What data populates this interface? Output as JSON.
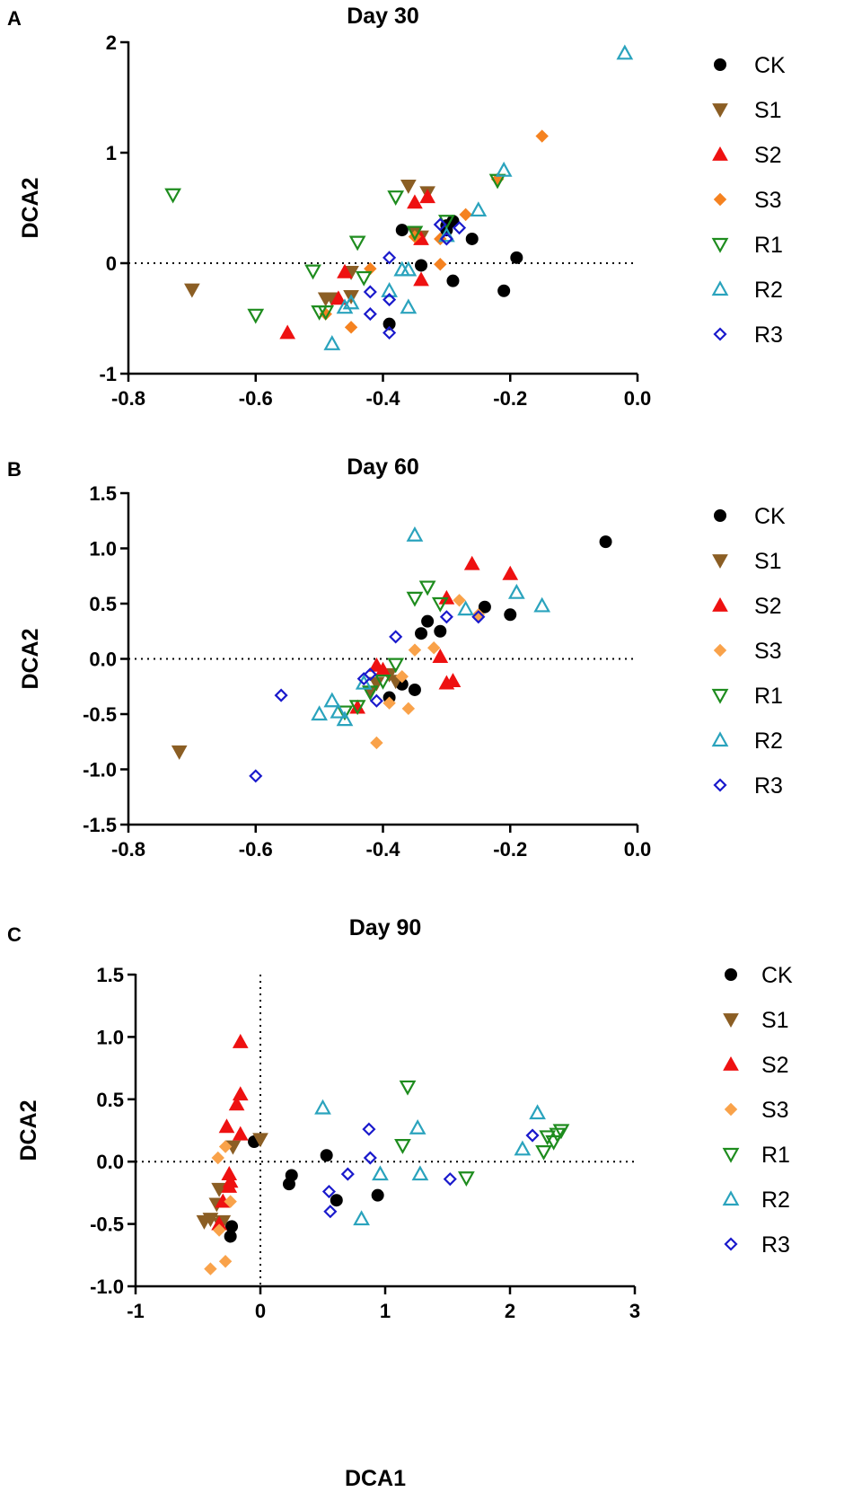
{
  "figure": {
    "x_axis_shared_label": "DCA1"
  },
  "legend_styles": {
    "CK": {
      "shape": "circle",
      "color": "#000000",
      "fill": true
    },
    "S1": {
      "shape": "tri-down",
      "color": "#8B5E24",
      "fill": true
    },
    "S2": {
      "shape": "tri-up",
      "color": "#EE1111",
      "fill": true
    },
    "S3": {
      "shape": "diamond",
      "color": "#F58220",
      "fill": true
    },
    "R1": {
      "shape": "tri-down",
      "color": "#1E8C1E",
      "fill": false
    },
    "R2": {
      "shape": "tri-up",
      "color": "#2AA3BD",
      "fill": false
    },
    "R3": {
      "shape": "diamond",
      "color": "#1A1ACC",
      "fill": false
    }
  },
  "chart_data": [
    {
      "panel": "A",
      "type": "scatter",
      "title": "Day 30",
      "xlabel": "",
      "ylabel": "DCA2",
      "xlim": [
        -0.8,
        0.0
      ],
      "ylim": [
        -1,
        2
      ],
      "xticks": [
        -0.8,
        -0.6,
        -0.4,
        -0.2,
        0.0
      ],
      "xtick_labels": [
        "-0.8",
        "-0.6",
        "-0.4",
        "-0.2",
        "0.0"
      ],
      "yticks": [
        -1,
        0,
        1,
        2
      ],
      "ytick_labels": [
        "-1",
        "0",
        "1",
        "2"
      ],
      "ref_lines": {
        "y": 0
      },
      "legend": [
        "CK",
        "S1",
        "S2",
        "S3",
        "R1",
        "R2",
        "R3"
      ],
      "s3_color": "#F58220",
      "series": [
        {
          "name": "CK",
          "points": [
            [
              -0.37,
              0.3
            ],
            [
              -0.34,
              -0.02
            ],
            [
              -0.3,
              0.3
            ],
            [
              -0.29,
              0.38
            ],
            [
              -0.3,
              0.34
            ],
            [
              -0.26,
              0.22
            ],
            [
              -0.19,
              0.05
            ],
            [
              -0.21,
              -0.25
            ],
            [
              -0.29,
              -0.16
            ],
            [
              -0.39,
              -0.55
            ]
          ]
        },
        {
          "name": "S1",
          "points": [
            [
              -0.7,
              -0.24
            ],
            [
              -0.49,
              -0.32
            ],
            [
              -0.48,
              -0.32
            ],
            [
              -0.45,
              -0.3
            ],
            [
              -0.45,
              -0.08
            ],
            [
              -0.36,
              0.7
            ],
            [
              -0.35,
              0.28
            ],
            [
              -0.34,
              0.24
            ],
            [
              -0.33,
              0.64
            ]
          ]
        },
        {
          "name": "S2",
          "points": [
            [
              -0.55,
              -0.63
            ],
            [
              -0.47,
              -0.32
            ],
            [
              -0.46,
              -0.08
            ],
            [
              -0.35,
              0.55
            ],
            [
              -0.34,
              0.22
            ],
            [
              -0.33,
              0.6
            ],
            [
              -0.34,
              -0.15
            ]
          ]
        },
        {
          "name": "S3",
          "points": [
            [
              -0.49,
              -0.46
            ],
            [
              -0.45,
              -0.58
            ],
            [
              -0.42,
              -0.05
            ],
            [
              -0.35,
              0.24
            ],
            [
              -0.31,
              0.22
            ],
            [
              -0.31,
              -0.01
            ],
            [
              -0.27,
              0.44
            ],
            [
              -0.22,
              0.76
            ],
            [
              -0.15,
              1.15
            ]
          ]
        },
        {
          "name": "R1",
          "points": [
            [
              -0.73,
              0.62
            ],
            [
              -0.6,
              -0.47
            ],
            [
              -0.51,
              -0.07
            ],
            [
              -0.5,
              -0.44
            ],
            [
              -0.49,
              -0.44
            ],
            [
              -0.44,
              0.19
            ],
            [
              -0.43,
              -0.13
            ],
            [
              -0.38,
              0.6
            ],
            [
              -0.35,
              0.28
            ],
            [
              -0.3,
              0.38
            ],
            [
              -0.22,
              0.75
            ]
          ]
        },
        {
          "name": "R2",
          "points": [
            [
              -0.48,
              -0.73
            ],
            [
              -0.46,
              -0.4
            ],
            [
              -0.45,
              -0.36
            ],
            [
              -0.39,
              -0.25
            ],
            [
              -0.37,
              -0.06
            ],
            [
              -0.36,
              -0.4
            ],
            [
              -0.36,
              -0.06
            ],
            [
              -0.3,
              0.25
            ],
            [
              -0.25,
              0.48
            ],
            [
              -0.21,
              0.84
            ],
            [
              -0.02,
              1.9
            ]
          ]
        },
        {
          "name": "R3",
          "points": [
            [
              -0.42,
              -0.46
            ],
            [
              -0.42,
              -0.26
            ],
            [
              -0.39,
              0.05
            ],
            [
              -0.39,
              -0.33
            ],
            [
              -0.39,
              -0.63
            ],
            [
              -0.31,
              0.35
            ],
            [
              -0.3,
              0.22
            ],
            [
              -0.28,
              0.32
            ]
          ]
        }
      ]
    },
    {
      "panel": "B",
      "type": "scatter",
      "title": "Day 60",
      "xlabel": "",
      "ylabel": "DCA2",
      "xlim": [
        -0.8,
        0.0
      ],
      "ylim": [
        -1.5,
        1.5
      ],
      "xticks": [
        -0.8,
        -0.6,
        -0.4,
        -0.2,
        0.0
      ],
      "xtick_labels": [
        "-0.8",
        "-0.6",
        "-0.4",
        "-0.2",
        "0.0"
      ],
      "yticks": [
        -1.5,
        -1.0,
        -0.5,
        0.0,
        0.5,
        1.0,
        1.5
      ],
      "ytick_labels": [
        "-1.5",
        "-1.0",
        "-0.5",
        "0.0",
        "0.5",
        "1.0",
        "1.5"
      ],
      "ref_lines": {
        "y": 0
      },
      "legend": [
        "CK",
        "S1",
        "S2",
        "S3",
        "R1",
        "R2",
        "R3"
      ],
      "s3_color": "#F9A24A",
      "series": [
        {
          "name": "CK",
          "points": [
            [
              -0.05,
              1.06
            ],
            [
              -0.24,
              0.47
            ],
            [
              -0.2,
              0.4
            ],
            [
              -0.33,
              0.34
            ],
            [
              -0.31,
              0.25
            ],
            [
              -0.34,
              0.23
            ],
            [
              -0.37,
              -0.23
            ],
            [
              -0.39,
              -0.35
            ],
            [
              -0.35,
              -0.28
            ]
          ]
        },
        {
          "name": "S1",
          "points": [
            [
              -0.72,
              -0.84
            ],
            [
              -0.38,
              -0.2
            ],
            [
              -0.39,
              -0.14
            ],
            [
              -0.41,
              -0.22
            ],
            [
              -0.42,
              -0.3
            ]
          ]
        },
        {
          "name": "S2",
          "points": [
            [
              -0.26,
              0.86
            ],
            [
              -0.2,
              0.77
            ],
            [
              -0.3,
              0.55
            ],
            [
              -0.3,
              -0.22
            ],
            [
              -0.29,
              -0.2
            ],
            [
              -0.31,
              0.02
            ],
            [
              -0.41,
              -0.06
            ],
            [
              -0.4,
              -0.1
            ],
            [
              -0.44,
              -0.44
            ]
          ]
        },
        {
          "name": "S3",
          "points": [
            [
              -0.28,
              0.53
            ],
            [
              -0.25,
              0.4
            ],
            [
              -0.35,
              0.08
            ],
            [
              -0.32,
              0.1
            ],
            [
              -0.36,
              -0.45
            ],
            [
              -0.41,
              -0.76
            ],
            [
              -0.37,
              -0.16
            ],
            [
              -0.39,
              -0.4
            ]
          ]
        },
        {
          "name": "R1",
          "points": [
            [
              -0.33,
              0.65
            ],
            [
              -0.35,
              0.55
            ],
            [
              -0.31,
              0.5
            ],
            [
              -0.38,
              -0.05
            ],
            [
              -0.4,
              -0.2
            ],
            [
              -0.42,
              -0.3
            ],
            [
              -0.44,
              -0.43
            ],
            [
              -0.46,
              -0.48
            ]
          ]
        },
        {
          "name": "R2",
          "points": [
            [
              -0.35,
              1.12
            ],
            [
              -0.19,
              0.6
            ],
            [
              -0.15,
              0.48
            ],
            [
              -0.27,
              0.45
            ],
            [
              -0.43,
              -0.22
            ],
            [
              -0.46,
              -0.55
            ],
            [
              -0.47,
              -0.48
            ],
            [
              -0.5,
              -0.5
            ],
            [
              -0.48,
              -0.38
            ]
          ]
        },
        {
          "name": "R3",
          "points": [
            [
              -0.6,
              -1.06
            ],
            [
              -0.56,
              -0.33
            ],
            [
              -0.38,
              0.2
            ],
            [
              -0.3,
              0.38
            ],
            [
              -0.25,
              0.38
            ],
            [
              -0.43,
              -0.18
            ],
            [
              -0.42,
              -0.14
            ],
            [
              -0.41,
              -0.38
            ]
          ]
        }
      ]
    },
    {
      "panel": "C",
      "type": "scatter",
      "title": "Day 90",
      "xlabel": "DCA1",
      "ylabel": "DCA2",
      "xlim": [
        -1,
        3
      ],
      "ylim": [
        -1.0,
        1.5
      ],
      "xticks": [
        -1,
        0,
        1,
        2,
        3
      ],
      "xtick_labels": [
        "-1",
        "0",
        "1",
        "2",
        "3"
      ],
      "yticks": [
        -1.0,
        -0.5,
        0.0,
        0.5,
        1.0,
        1.5
      ],
      "ytick_labels": [
        "-1.0",
        "-0.5",
        "0.0",
        "0.5",
        "1.0",
        "1.5"
      ],
      "ref_lines": {
        "x": 0,
        "y": 0
      },
      "legend": [
        "CK",
        "S1",
        "S2",
        "S3",
        "R1",
        "R2",
        "R3"
      ],
      "s3_color": "#F9A24A",
      "series": [
        {
          "name": "CK",
          "points": [
            [
              -0.05,
              0.16
            ],
            [
              0.25,
              -0.11
            ],
            [
              0.23,
              -0.18
            ],
            [
              0.53,
              0.05
            ],
            [
              0.61,
              -0.31
            ],
            [
              0.94,
              -0.27
            ],
            [
              -0.23,
              -0.52
            ],
            [
              -0.24,
              -0.6
            ]
          ]
        },
        {
          "name": "S1",
          "points": [
            [
              0.0,
              0.18
            ],
            [
              -0.22,
              0.12
            ],
            [
              -0.33,
              -0.22
            ],
            [
              -0.35,
              -0.34
            ],
            [
              -0.4,
              -0.46
            ],
            [
              -0.45,
              -0.48
            ],
            [
              -0.32,
              -0.5
            ],
            [
              -0.3,
              -0.48
            ]
          ]
        },
        {
          "name": "S2",
          "points": [
            [
              -0.16,
              0.96
            ],
            [
              -0.16,
              0.54
            ],
            [
              -0.19,
              0.46
            ],
            [
              -0.27,
              0.28
            ],
            [
              -0.16,
              0.22
            ],
            [
              -0.25,
              -0.1
            ],
            [
              -0.24,
              -0.16
            ],
            [
              -0.25,
              -0.2
            ],
            [
              -0.3,
              -0.32
            ],
            [
              -0.33,
              -0.5
            ]
          ]
        },
        {
          "name": "S3",
          "points": [
            [
              -0.28,
              0.12
            ],
            [
              -0.34,
              0.03
            ],
            [
              -0.24,
              -0.32
            ],
            [
              -0.33,
              -0.55
            ],
            [
              -0.28,
              -0.8
            ],
            [
              -0.4,
              -0.86
            ]
          ]
        },
        {
          "name": "R1",
          "points": [
            [
              1.18,
              0.6
            ],
            [
              1.14,
              0.13
            ],
            [
              1.65,
              -0.13
            ],
            [
              2.27,
              0.08
            ],
            [
              2.3,
              0.2
            ],
            [
              2.35,
              0.16
            ],
            [
              2.38,
              0.22
            ],
            [
              2.41,
              0.25
            ]
          ]
        },
        {
          "name": "R2",
          "points": [
            [
              0.5,
              0.43
            ],
            [
              1.26,
              0.27
            ],
            [
              0.96,
              -0.1
            ],
            [
              1.28,
              -0.1
            ],
            [
              0.81,
              -0.46
            ],
            [
              2.1,
              0.1
            ],
            [
              2.22,
              0.39
            ]
          ]
        },
        {
          "name": "R3",
          "points": [
            [
              0.87,
              0.26
            ],
            [
              0.88,
              0.03
            ],
            [
              0.7,
              -0.1
            ],
            [
              0.55,
              -0.24
            ],
            [
              0.56,
              -0.4
            ],
            [
              1.52,
              -0.14
            ],
            [
              2.18,
              0.21
            ]
          ]
        }
      ]
    }
  ]
}
